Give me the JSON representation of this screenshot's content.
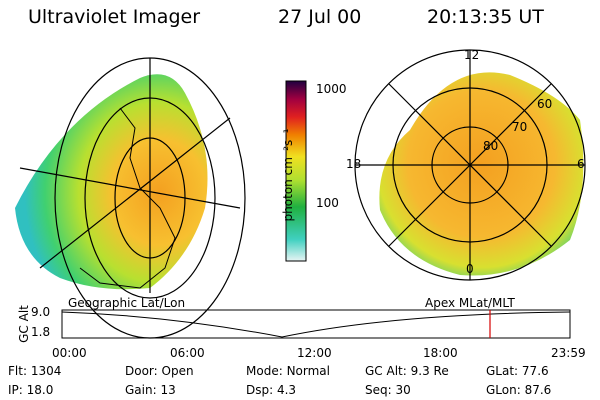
{
  "header": {
    "instrument": "Ultraviolet Imager",
    "date": "27 Jul 00",
    "time": "20:13:35 UT"
  },
  "colorbar": {
    "unit_label": "photon cm⁻²s⁻¹",
    "ticks": [
      "1000",
      "100"
    ]
  },
  "polar_plot": {
    "mlt_labels": {
      "top": "12",
      "left": "18",
      "right": "6",
      "bottom": "0"
    },
    "lat_labels": [
      "60",
      "70",
      "80"
    ]
  },
  "bottom_panel": {
    "left_title": "Geographic Lat/Lon",
    "right_title": "Apex MLat/MLT",
    "y_axis_label": "GC Alt",
    "y_ticks": [
      "9.0",
      "1.8"
    ],
    "x_ticks": [
      "00:00",
      "06:00",
      "12:00",
      "18:00",
      "23:59"
    ],
    "marker_color": "#d40000"
  },
  "info": {
    "flt_label": "Flt:",
    "flt_value": "1304",
    "ip_label": "IP:",
    "ip_value": "18.0",
    "door_label": "Door:",
    "door_value": "Open",
    "gain_label": "Gain:",
    "gain_value": "13",
    "mode_label": "Mode:",
    "mode_value": "Normal",
    "dsp_label": "Dsp:",
    "dsp_value": "4.3",
    "gcalt_label": "GC Alt:",
    "gcalt_value": "9.3 Re",
    "seq_label": "Seq:",
    "seq_value": "30",
    "glat_label": "GLat:",
    "glat_value": "77.6",
    "glon_label": "GLon:",
    "glon_value": "87.6"
  }
}
